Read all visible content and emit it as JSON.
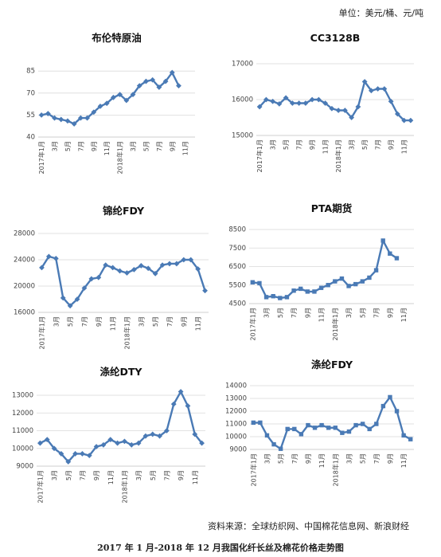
{
  "header": {
    "unit": "单位：美元/桶、元/吨"
  },
  "footer": {
    "source": "资料来源：全球纺织网、中国棉花信息网、新浪财经",
    "caption": "2017 年 1 月-2018 年 12 月我国化纤长丝及棉花价格走势图"
  },
  "chart_data": [
    {
      "type": "line",
      "title": "布伦特原油",
      "marker": "diamond",
      "categories": [
        "2017年1月",
        "3月",
        "5月",
        "7月",
        "9月",
        "11月",
        "2018年1月",
        "3月",
        "5月",
        "7月",
        "9月",
        "11月"
      ],
      "yticks": [
        40,
        55,
        70,
        85
      ],
      "ylim": [
        40,
        90
      ],
      "x": [
        1,
        2,
        3,
        4,
        5,
        6,
        7,
        8,
        9,
        10,
        11,
        12,
        13,
        14,
        15,
        16,
        17,
        18,
        19,
        20,
        21,
        22
      ],
      "values": [
        55,
        56,
        53,
        52,
        51,
        49,
        53,
        53,
        57,
        61,
        63,
        67,
        69,
        65,
        69,
        75,
        78,
        79,
        74,
        78,
        84,
        75
      ]
    },
    {
      "type": "line",
      "title": "CC3128B",
      "marker": "diamond",
      "categories": [
        "2017年1月",
        "3月",
        "5月",
        "7月",
        "9月",
        "11月",
        "2018年1月",
        "3月",
        "5月",
        "7月",
        "9月",
        "11月"
      ],
      "yticks": [
        15000,
        16000,
        17000
      ],
      "ylim": [
        15000,
        17000
      ],
      "x": [
        1,
        2,
        3,
        4,
        5,
        6,
        7,
        8,
        9,
        10,
        11,
        12,
        13,
        14,
        15,
        16,
        17,
        18,
        19,
        20,
        21,
        22,
        23,
        24
      ],
      "values": [
        15800,
        16000,
        15950,
        15880,
        16050,
        15900,
        15900,
        15900,
        16000,
        16000,
        15900,
        15750,
        15700,
        15700,
        15500,
        15800,
        16500,
        16250,
        16300,
        16300,
        15950,
        15600,
        15420,
        15420
      ]
    },
    {
      "type": "line",
      "title": "锦纶FDY",
      "marker": "diamond",
      "categories": [
        "2017年1月",
        "3月",
        "5月",
        "7月",
        "9月",
        "11月",
        "2018年1月",
        "3月",
        "5月",
        "7月",
        "9月",
        "11月"
      ],
      "yticks": [
        16000,
        20000,
        24000,
        28000
      ],
      "ylim": [
        16000,
        28000
      ],
      "x": [
        1,
        2,
        3,
        4,
        5,
        6,
        7,
        8,
        9,
        10,
        11,
        12,
        13,
        14,
        15,
        16,
        17,
        18,
        19,
        20,
        21,
        22,
        23,
        24
      ],
      "values": [
        22800,
        24500,
        24200,
        18200,
        17000,
        18000,
        19700,
        21100,
        21300,
        23200,
        22800,
        22300,
        22000,
        22500,
        23100,
        22700,
        21900,
        23200,
        23400,
        23400,
        24000,
        24000,
        22600,
        19300
      ]
    },
    {
      "type": "line",
      "title": "PTA期货",
      "marker": "square",
      "categories": [
        "2017年1月",
        "3月",
        "5月",
        "7月",
        "9月",
        "11月",
        "2018年1月",
        "3月",
        "5月",
        "7月",
        "9月",
        "11月"
      ],
      "yticks": [
        4500,
        5500,
        6500,
        7500,
        8500
      ],
      "ylim": [
        4500,
        8500
      ],
      "x": [
        1,
        2,
        3,
        4,
        5,
        6,
        7,
        8,
        9,
        10,
        11,
        12,
        13,
        14,
        15,
        16,
        17,
        18,
        19,
        20,
        21,
        22
      ],
      "values": [
        5650,
        5600,
        4850,
        4900,
        4800,
        4850,
        5200,
        5300,
        5150,
        5150,
        5350,
        5500,
        5700,
        5850,
        5450,
        5550,
        5700,
        5900,
        6300,
        7900,
        7200,
        6950
      ]
    },
    {
      "type": "line",
      "title": "涤纶DTY",
      "marker": "diamond",
      "categories": [
        "2017年1月",
        "3月",
        "5月",
        "7月",
        "9月",
        "11月",
        "2018年1月",
        "3月",
        "5月",
        "7月",
        "9月",
        "11月"
      ],
      "yticks": [
        9000,
        10000,
        11000,
        12000,
        13000
      ],
      "ylim": [
        9000,
        13000
      ],
      "x": [
        1,
        2,
        3,
        4,
        5,
        6,
        7,
        8,
        9,
        10,
        11,
        12,
        13,
        14,
        15,
        16,
        17,
        18,
        19,
        20,
        21,
        22,
        23,
        24
      ],
      "values": [
        10300,
        10500,
        10000,
        9700,
        9250,
        9700,
        9700,
        9600,
        10100,
        10200,
        10500,
        10300,
        10400,
        10200,
        10300,
        10700,
        10800,
        10700,
        11000,
        12500,
        13200,
        12400,
        10800,
        10300
      ]
    },
    {
      "type": "line",
      "title": "涤纶FDY",
      "marker": "square",
      "categories": [
        "2017年1月",
        "3月",
        "5月",
        "7月",
        "9月",
        "11月",
        "2018年1月",
        "3月",
        "5月",
        "7月",
        "9月",
        "11月"
      ],
      "yticks": [
        9000,
        10000,
        11000,
        12000,
        13000,
        14000
      ],
      "ylim": [
        9000,
        14000
      ],
      "x": [
        1,
        2,
        3,
        4,
        5,
        6,
        7,
        8,
        9,
        10,
        11,
        12,
        13,
        14,
        15,
        16,
        17,
        18,
        19,
        20,
        21,
        22,
        23,
        24
      ],
      "values": [
        11100,
        11100,
        10100,
        9400,
        9050,
        10600,
        10600,
        10200,
        10900,
        10700,
        10900,
        10700,
        10700,
        10300,
        10400,
        10900,
        11000,
        10600,
        11000,
        12400,
        13100,
        12000,
        10100,
        9800
      ]
    }
  ]
}
